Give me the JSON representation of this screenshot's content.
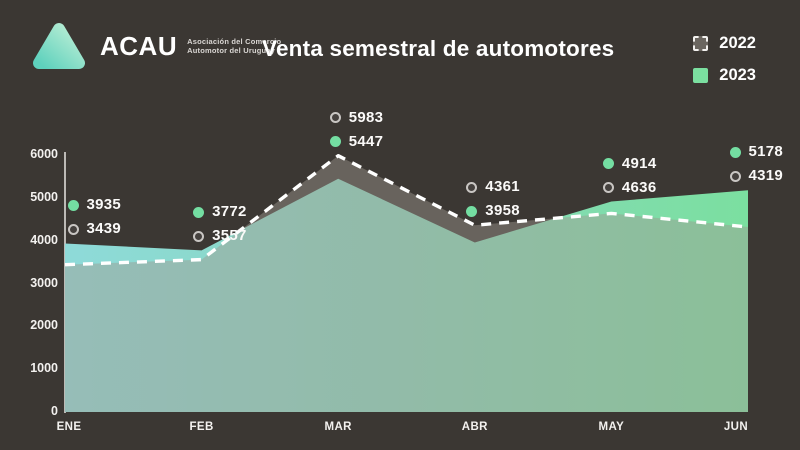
{
  "brand": {
    "name": "ACAU",
    "subtitle_line1": "Asociación del Comercio",
    "subtitle_line2": "Automotor del Uruguay"
  },
  "title": "Venta semestral de automotores",
  "legend": {
    "position": "top-right",
    "items": [
      {
        "label": "2022",
        "style": "gray-dashed-swatch"
      },
      {
        "label": "2023",
        "style": "green-solid-swatch"
      }
    ]
  },
  "chart_data": {
    "type": "area",
    "title": "Venta semestral de automotores",
    "categories": [
      "ENE",
      "FEB",
      "MAR",
      "ABR",
      "MAY",
      "JUN"
    ],
    "series": [
      {
        "name": "2022",
        "values": [
          3439,
          3557,
          5983,
          4361,
          4636,
          4319
        ],
        "style": "semi-transparent-gray-area-with-white-dashed-top-line"
      },
      {
        "name": "2023",
        "values": [
          3935,
          3772,
          5447,
          3958,
          4914,
          5178
        ],
        "style": "opaque-area-teal-to-green-horizontal-gradient"
      }
    ],
    "xlabel": "",
    "ylabel": "",
    "ylim": [
      0,
      6000
    ],
    "yticks": [
      0,
      1000,
      2000,
      3000,
      4000,
      5000,
      6000
    ],
    "grid": false,
    "legend_position": "top-right",
    "point_labels_visible": true
  },
  "colors": {
    "background": "#3B3733",
    "text_white": "#FFFFFF",
    "tick_text": "#F3F1EF",
    "axis_line": "#DDDAD7",
    "area_2023_gradient_start": "#8EDAD9",
    "area_2023_gradient_mid": "#87D8BC",
    "area_2023_gradient_end": "#7BDFA0",
    "area_2022_fill": "rgba(160,153,144,0.45)",
    "band_2022_visible": "#6B6660",
    "dashed_line": "#FFFFFF",
    "dot_2023": "#74DEA2",
    "dot_2022_ring": "#C9C6C3",
    "dot_2022_center": "#45413E",
    "legend_2022_swatch": "#6B6660",
    "logo_gradient_start": "#BEEFD6",
    "logo_gradient_end": "#5ED1BD"
  }
}
